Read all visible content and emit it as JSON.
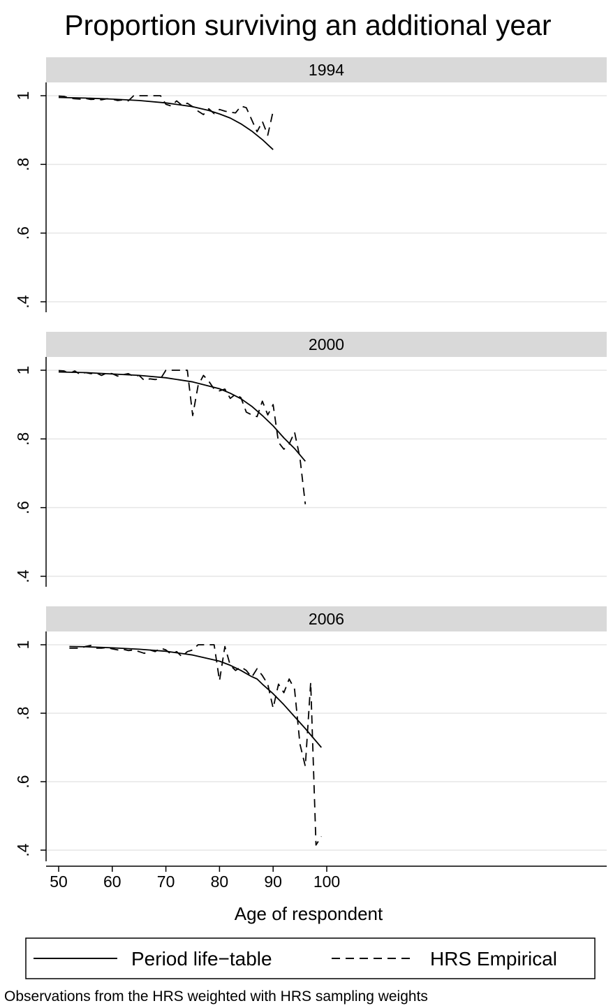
{
  "chart_data": {
    "type": "line",
    "title": "Proportion surviving an additional year",
    "xlabel": "Age of respondent",
    "ylabel": "",
    "xlim": [
      49,
      101
    ],
    "ylim": [
      0.4,
      1.0
    ],
    "x_ticks": [
      "50",
      "60",
      "70",
      "80",
      "90",
      "100"
    ],
    "y_ticks": [
      "1",
      ".8",
      ".6",
      ".4"
    ],
    "grid": true,
    "legend": {
      "position": "bottom",
      "entries": [
        "Period life−table",
        "HRS Empirical"
      ]
    },
    "note": "Observations from the HRS weighted with HRS sampling weights",
    "panels": [
      {
        "label": "1994",
        "series": [
          {
            "name": "Period life−table",
            "style": "solid",
            "x": [
              50,
              55,
              60,
              65,
              70,
              75,
              78,
              80,
              82,
              84,
              86,
              88,
              90
            ],
            "y": [
              0.995,
              0.993,
              0.99,
              0.986,
              0.979,
              0.968,
              0.957,
              0.947,
              0.935,
              0.918,
              0.897,
              0.872,
              0.843
            ]
          },
          {
            "name": "HRS Empirical",
            "style": "dashed",
            "x": [
              50,
              51,
              52,
              53,
              54,
              55,
              56,
              57,
              58,
              59,
              60,
              61,
              62,
              63,
              64,
              65,
              66,
              67,
              68,
              69,
              70,
              71,
              72,
              73,
              74,
              75,
              76,
              77,
              78,
              79,
              80,
              81,
              82,
              83,
              84,
              85,
              86,
              87,
              88,
              89,
              90
            ],
            "y": [
              0.999,
              0.998,
              0.993,
              0.991,
              0.99,
              0.992,
              0.989,
              0.99,
              0.988,
              0.991,
              0.99,
              0.986,
              0.988,
              0.985,
              1.0,
              1.0,
              1.0,
              1.0,
              1.0,
              1.0,
              0.975,
              0.97,
              0.985,
              0.972,
              0.978,
              0.968,
              0.955,
              0.945,
              0.962,
              0.948,
              0.96,
              0.955,
              0.952,
              0.95,
              0.97,
              0.965,
              0.93,
              0.895,
              0.925,
              0.885,
              0.955
            ]
          }
        ]
      },
      {
        "label": "2000",
        "series": [
          {
            "name": "Period life−table",
            "style": "solid",
            "x": [
              50,
              55,
              60,
              65,
              70,
              75,
              80,
              82,
              84,
              86,
              88,
              90,
              92,
              94,
              96
            ],
            "y": [
              0.995,
              0.993,
              0.989,
              0.985,
              0.978,
              0.966,
              0.946,
              0.933,
              0.917,
              0.895,
              0.868,
              0.838,
              0.803,
              0.772,
              0.735
            ]
          },
          {
            "name": "HRS Empirical",
            "style": "dashed",
            "x": [
              50,
              51,
              52,
              53,
              54,
              55,
              56,
              57,
              58,
              59,
              60,
              61,
              62,
              63,
              64,
              65,
              66,
              67,
              68,
              69,
              70,
              71,
              72,
              73,
              74,
              75,
              76,
              77,
              78,
              79,
              80,
              81,
              82,
              83,
              84,
              85,
              86,
              87,
              88,
              89,
              90,
              91,
              92,
              93,
              94,
              95,
              96
            ],
            "y": [
              0.999,
              0.998,
              0.99,
              0.998,
              0.988,
              0.993,
              0.99,
              0.992,
              0.985,
              0.992,
              0.99,
              0.983,
              0.987,
              0.99,
              0.982,
              0.985,
              0.97,
              0.975,
              0.973,
              0.975,
              1.0,
              1.0,
              1.0,
              1.0,
              1.0,
              0.868,
              0.955,
              0.985,
              0.968,
              0.945,
              0.94,
              0.945,
              0.918,
              0.93,
              0.92,
              0.878,
              0.87,
              0.865,
              0.91,
              0.87,
              0.9,
              0.79,
              0.77,
              0.785,
              0.82,
              0.745,
              0.61
            ]
          }
        ]
      },
      {
        "label": "2006",
        "series": [
          {
            "name": "Period life−table",
            "style": "solid",
            "x": [
              52,
              55,
              60,
              65,
              70,
              75,
              80,
              82,
              84,
              86,
              87,
              88,
              90,
              92,
              94,
              96,
              99
            ],
            "y": [
              0.995,
              0.994,
              0.991,
              0.987,
              0.981,
              0.97,
              0.952,
              0.94,
              0.925,
              0.907,
              0.9,
              0.885,
              0.857,
              0.825,
              0.79,
              0.755,
              0.7
            ]
          },
          {
            "name": "HRS Empirical",
            "style": "dashed",
            "x": [
              52,
              53,
              54,
              55,
              56,
              57,
              58,
              59,
              60,
              61,
              62,
              63,
              64,
              65,
              66,
              67,
              68,
              69,
              70,
              71,
              72,
              73,
              74,
              75,
              76,
              77,
              78,
              79,
              80,
              81,
              82,
              83,
              84,
              85,
              86,
              87,
              88,
              89,
              90,
              91,
              92,
              93,
              94,
              95,
              96,
              97,
              98,
              99
            ],
            "y": [
              0.99,
              0.99,
              0.99,
              0.995,
              0.998,
              0.99,
              0.99,
              0.992,
              0.988,
              0.985,
              0.987,
              0.983,
              0.985,
              0.98,
              0.975,
              0.985,
              0.98,
              0.99,
              0.985,
              0.972,
              0.98,
              0.965,
              0.98,
              0.985,
              1.0,
              1.0,
              1.0,
              1.0,
              0.895,
              0.995,
              0.94,
              0.925,
              0.935,
              0.925,
              0.905,
              0.93,
              0.91,
              0.885,
              0.815,
              0.885,
              0.86,
              0.9,
              0.87,
              0.71,
              0.645,
              0.89,
              0.415,
              0.44
            ]
          }
        ]
      }
    ]
  }
}
